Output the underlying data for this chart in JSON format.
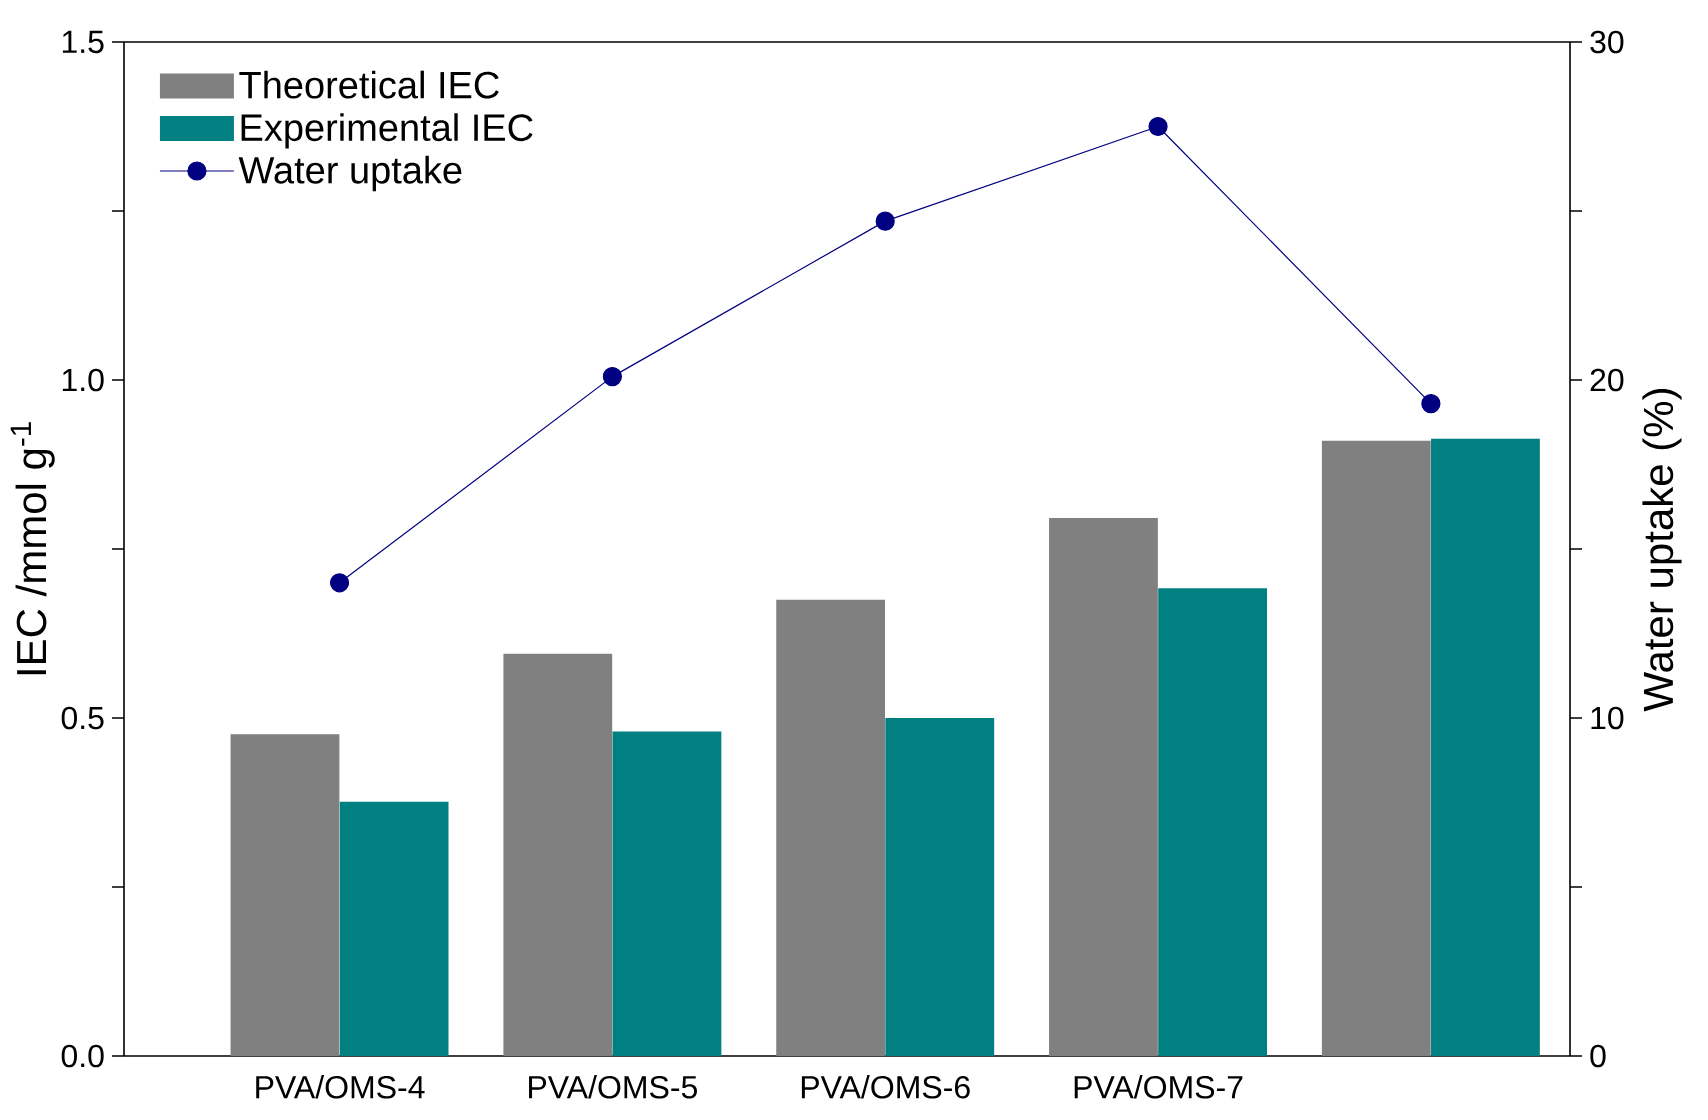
{
  "chart_data": {
    "type": "bar",
    "categories": [
      "PVA/OMS-4",
      "PVA/OMS-5",
      "PVA/OMS-6",
      "PVA/OMS-7",
      null
    ],
    "ylabel": "IEC /mmol g$^{-1}$",
    "y2label": "Water uptake (%)",
    "ylim": [
      0,
      1.5
    ],
    "yticks": [
      {
        "value": 0,
        "label": "0.0"
      },
      {
        "value": 0.25,
        "label": null
      },
      {
        "value": 0.5,
        "label": "0.5"
      },
      {
        "value": 0.75,
        "label": null
      },
      {
        "value": 1.0,
        "label": "1.0"
      },
      {
        "value": 1.25,
        "label": null
      },
      1.5
    ],
    "y2lim": [
      0,
      30
    ],
    "y2ticks": [
      0,
      {
        "value": 5,
        "label": null
      },
      10,
      {
        "value": 15,
        "label": null
      },
      20,
      {
        "value": 25,
        "label": null
      },
      30
    ],
    "legend": "top left",
    "grid": false,
    "series": [
      {
        "name": "Theoretical IEC",
        "color": "#808080",
        "values": [
          0.476,
          0.595,
          0.675,
          0.796,
          0.91
        ]
      },
      {
        "name": "Experimental IEC",
        "color": "#008080",
        "values": [
          0.376,
          0.48,
          0.5,
          0.692,
          0.913
        ]
      },
      {
        "name": "Water uptake",
        "type": "line",
        "axis": "y2",
        "marker": "circle",
        "line_style": "solid",
        "color": "#000080",
        "values": [
          14.0,
          20.1,
          24.7,
          27.5,
          19.3
        ]
      }
    ]
  }
}
